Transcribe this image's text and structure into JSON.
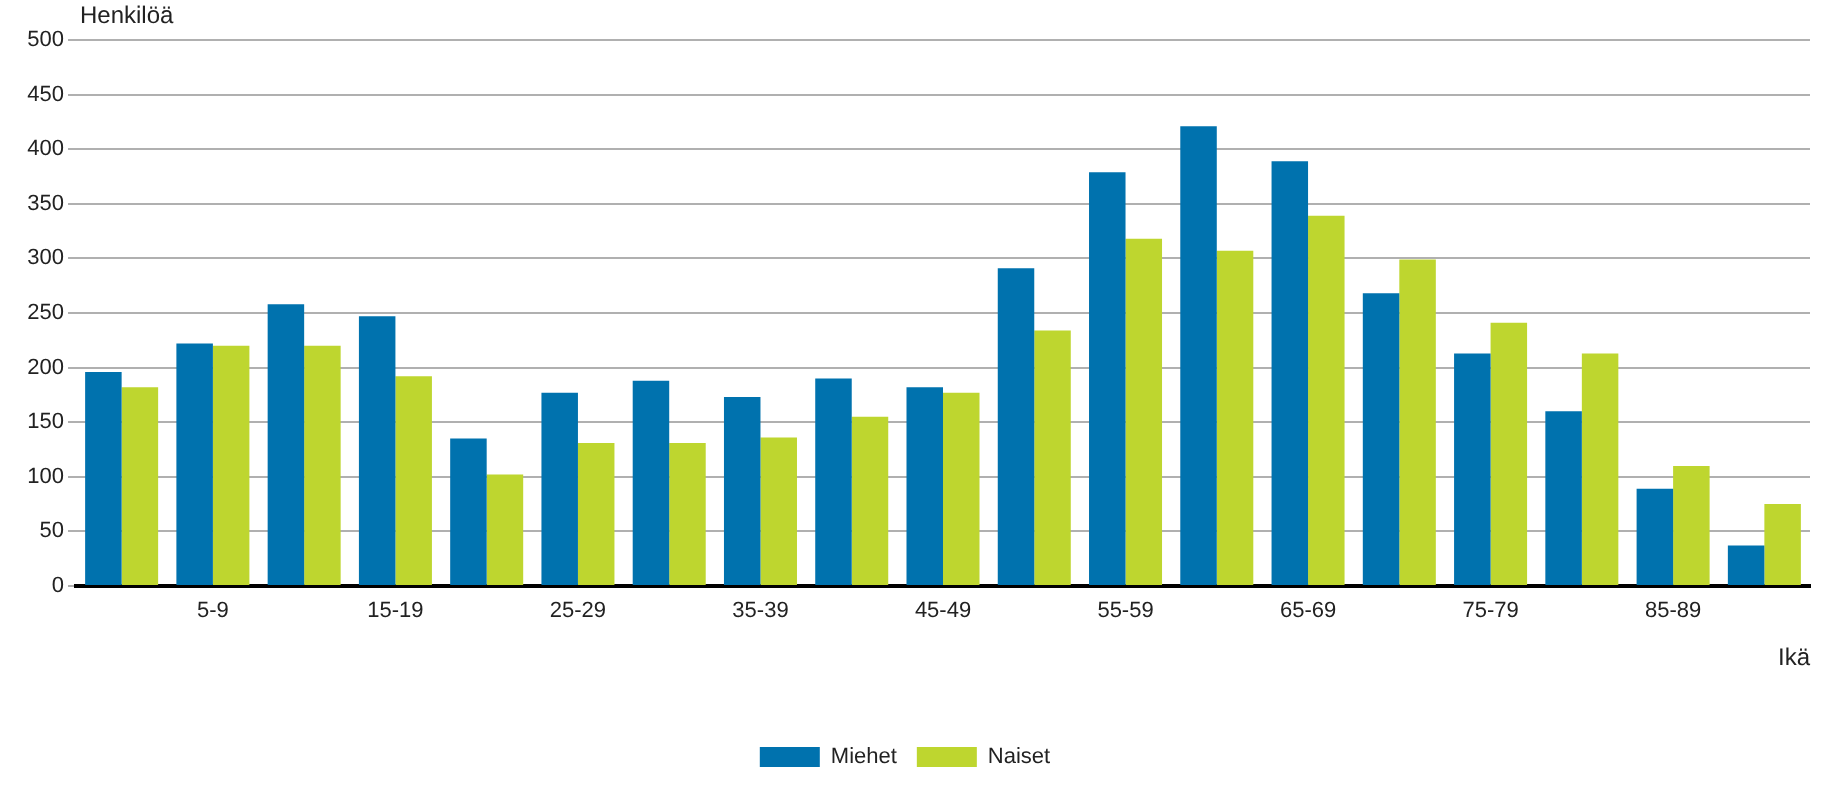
{
  "chart_data": {
    "type": "bar",
    "xlabel": "Ikä",
    "ylabel": "Henkilöä",
    "categories": [
      null,
      "5-9",
      null,
      "15-19",
      null,
      "25-29",
      null,
      "35-39",
      null,
      "45-49",
      null,
      "55-59",
      null,
      "65-69",
      null,
      "75-79",
      null,
      "85-89",
      null
    ],
    "series": [
      {
        "name": "Miehet",
        "color": "#0072ae",
        "values": [
          196,
          222,
          258,
          247,
          135,
          177,
          188,
          173,
          190,
          182,
          291,
          379,
          421,
          389,
          268,
          213,
          160,
          89,
          37
        ]
      },
      {
        "name": "Naiset",
        "color": "#bed62f",
        "values": [
          182,
          220,
          220,
          192,
          102,
          131,
          131,
          136,
          155,
          177,
          234,
          318,
          307,
          339,
          299,
          241,
          213,
          110,
          75
        ]
      }
    ],
    "ylim": [
      0,
      500
    ],
    "yticks": [
      0,
      50,
      100,
      150,
      200,
      250,
      300,
      350,
      400,
      450,
      500
    ],
    "grid": "y",
    "legend": "bottom"
  }
}
